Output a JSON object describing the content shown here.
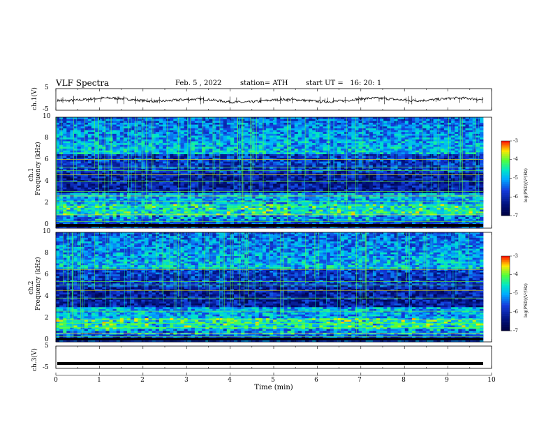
{
  "header": {
    "title": "VLF Spectra",
    "date": "Feb. 5 , 2022",
    "station": "station= ATH",
    "start": "start UT =   16: 20: 1"
  },
  "chart_data": [
    {
      "type": "line",
      "ylabel": "ch.1(V)",
      "y_ticks": [
        "5",
        "-5"
      ],
      "ylim": [
        -5,
        5
      ],
      "series": [
        {
          "values_note": "",
          "values": [
            -0.2,
            0.4,
            -0.6,
            0.3,
            -0.1,
            0.5,
            -0.4,
            0.2,
            0.0,
            -0.3,
            0.4,
            -0.2
          ]
        }
      ]
    },
    {
      "type": "heatmap",
      "ylabel": "ch.1",
      "ylabel2": "Frequency (kHz)",
      "y_ticks": [
        "10",
        "8",
        "6",
        "4",
        "2",
        "0"
      ],
      "ylim": [
        0,
        10
      ],
      "colorbar": {
        "label": "log(PSD)(V²/Hz)",
        "ticks": [
          "-3",
          "-4",
          "-5",
          "-6",
          "-7"
        ],
        "range": [
          -7,
          -3
        ]
      }
    },
    {
      "type": "heatmap",
      "ylabel": "ch.2",
      "ylabel2": "Frequency (kHz)",
      "y_ticks": [
        "10",
        "8",
        "6",
        "4",
        "2",
        "0"
      ],
      "ylim": [
        0,
        10
      ],
      "colorbar": {
        "label": "log(PSD)(V²/Hz)",
        "ticks": [
          "-3",
          "-4",
          "-5",
          "-6",
          "-7"
        ],
        "range": [
          -7,
          -3
        ]
      }
    },
    {
      "type": "line",
      "ylabel": "ch.3(V)",
      "y_ticks": [
        "5",
        "-5"
      ],
      "ylim": [
        -5,
        5
      ],
      "series": [
        {
          "values": [
            -2.8,
            -2.8,
            -2.8,
            -2.8,
            -2.8,
            -2.8
          ]
        }
      ]
    }
  ],
  "x_axis": {
    "label": "Time (min)",
    "ticks": [
      "0",
      "1",
      "2",
      "3",
      "4",
      "5",
      "6",
      "7",
      "8",
      "9",
      "10"
    ],
    "xlim": [
      0,
      10
    ]
  },
  "colors": {
    "bg": "#ffffff",
    "cold": "#00106a",
    "mid": "#00aaff",
    "warm": "#66ff33",
    "hot": "#ffee00"
  }
}
